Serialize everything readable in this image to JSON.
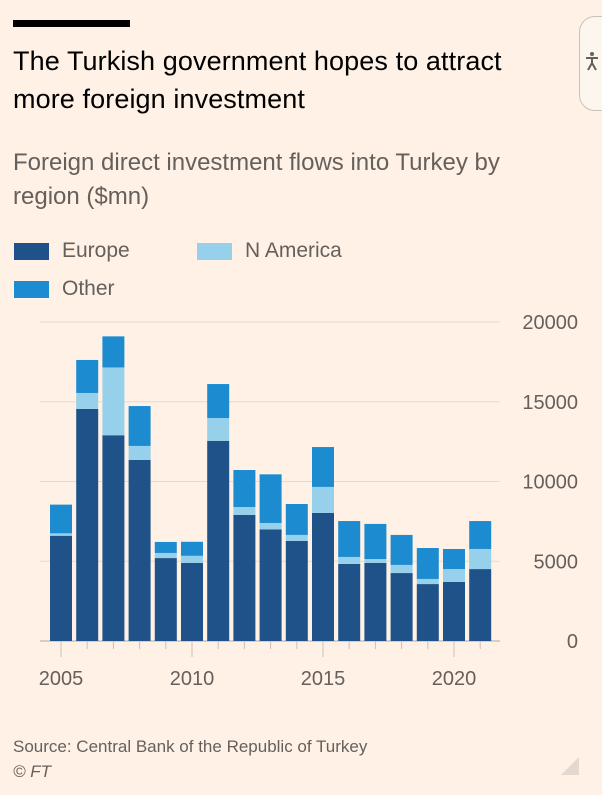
{
  "header": {
    "title": "The Turkish government hopes to attract more foreign investment",
    "subtitle": "Foreign direct investment flows into Turkey by region ($mn)"
  },
  "accessibility_button": {
    "icon": "accessibility-icon",
    "glyph": "Ὣ6"
  },
  "legend": [
    {
      "label": "Europe",
      "color": "#1f5288"
    },
    {
      "label": "N America",
      "color": "#96d0ea"
    },
    {
      "label": "Other",
      "color": "#1d8bd0"
    }
  ],
  "footer": {
    "source": "Source: Central Bank of the Republic of Turkey",
    "credit": "© FT"
  },
  "chart_data": {
    "type": "bar",
    "stacked": true,
    "title": "Foreign direct investment flows into Turkey by region ($mn)",
    "xlabel": "",
    "ylabel": "$mn",
    "categories": [
      "2005",
      "2006",
      "2007",
      "2008",
      "2009",
      "2010",
      "2011",
      "2012",
      "2013",
      "2014",
      "2015",
      "2016",
      "2017",
      "2018",
      "2019",
      "2020",
      "2021"
    ],
    "x_tick_labels": [
      "2005",
      "2010",
      "2015",
      "2020"
    ],
    "y_ticks": [
      0,
      5000,
      10000,
      15000,
      20000
    ],
    "y_tick_labels": [
      "0",
      "5000",
      "10000",
      "15000",
      "20000"
    ],
    "ylim": [
      0,
      20000
    ],
    "y_axis_side": "right",
    "grid": true,
    "legend_position": "top-left",
    "series": [
      {
        "name": "Europe",
        "color": "#1f5288",
        "values": [
          6600,
          14550,
          12900,
          11350,
          5200,
          4900,
          12550,
          7900,
          7000,
          6270,
          8030,
          4830,
          4890,
          4260,
          3570,
          3700,
          4510
        ]
      },
      {
        "name": "N America",
        "color": "#96d0ea",
        "values": [
          150,
          1000,
          4250,
          880,
          320,
          440,
          1430,
          500,
          400,
          380,
          1630,
          440,
          250,
          510,
          320,
          810,
          1260
        ]
      },
      {
        "name": "Other",
        "color": "#1d8bd0",
        "values": [
          1800,
          2070,
          1950,
          2500,
          690,
          880,
          2130,
          2320,
          3050,
          1940,
          2500,
          2250,
          2200,
          1880,
          1940,
          1260,
          1750
        ]
      }
    ]
  }
}
